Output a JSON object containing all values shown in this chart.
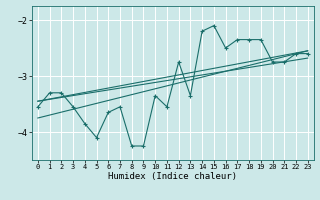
{
  "xlabel": "Humidex (Indice chaleur)",
  "bg_color": "#cce8e8",
  "grid_color": "#ffffff",
  "line_color": "#1a6e6a",
  "xlim": [
    -0.5,
    23.5
  ],
  "ylim": [
    -4.5,
    -1.75
  ],
  "yticks": [
    -4,
    -3,
    -2
  ],
  "xticks": [
    0,
    1,
    2,
    3,
    4,
    5,
    6,
    7,
    8,
    9,
    10,
    11,
    12,
    13,
    14,
    15,
    16,
    17,
    18,
    19,
    20,
    21,
    22,
    23
  ],
  "curve_x": [
    0,
    1,
    2,
    3,
    4,
    5,
    6,
    7,
    8,
    9,
    10,
    11,
    12,
    13,
    14,
    15,
    16,
    17,
    18,
    19,
    20,
    21,
    22,
    23
  ],
  "curve_y": [
    -3.55,
    -3.3,
    -3.3,
    -3.55,
    -3.85,
    -4.1,
    -3.65,
    -3.55,
    -4.25,
    -4.25,
    -3.35,
    -3.55,
    -2.75,
    -3.35,
    -2.2,
    -2.1,
    -2.5,
    -2.35,
    -2.35,
    -2.35,
    -2.75,
    -2.75,
    -2.6,
    -2.6
  ],
  "line1_x": [
    0,
    23
  ],
  "line1_y": [
    -3.45,
    -2.55
  ],
  "line2_x": [
    0,
    23
  ],
  "line2_y": [
    -3.75,
    -2.55
  ],
  "line3_x": [
    0,
    23
  ],
  "line3_y": [
    -3.45,
    -2.68
  ]
}
